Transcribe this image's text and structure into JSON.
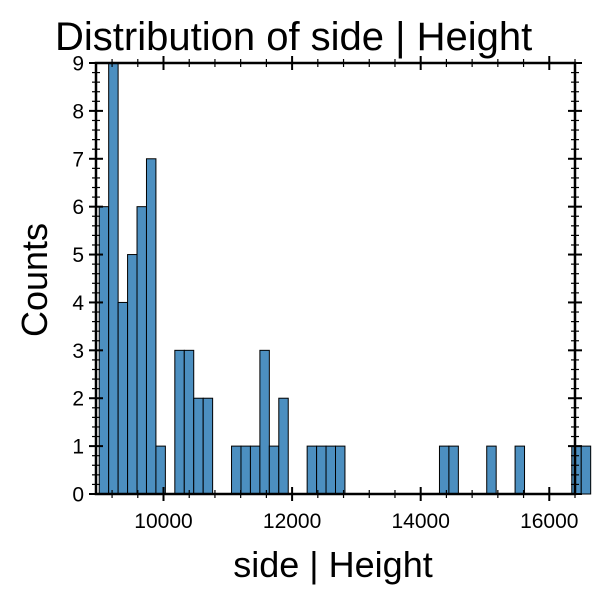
{
  "chart_data": {
    "type": "bar",
    "title": "Distribution of side | Height",
    "xlabel": "side | Height",
    "ylabel": "Counts",
    "xlim": [
      8950,
      16400
    ],
    "ylim": [
      0,
      9
    ],
    "xticks": [
      10000,
      12000,
      14000,
      16000
    ],
    "yticks": [
      0,
      1,
      2,
      3,
      4,
      5,
      6,
      7,
      8,
      9
    ],
    "grid": false,
    "bar_color": "#4c8fc0",
    "bins": {
      "start": 9000,
      "width": 147,
      "counts": [
        6,
        9,
        4,
        5,
        6,
        7,
        1,
        0,
        3,
        3,
        2,
        2,
        0,
        0,
        1,
        1,
        1,
        3,
        1,
        2,
        0,
        0,
        1,
        1,
        1,
        1,
        0,
        0,
        0,
        0,
        0,
        0,
        0,
        0,
        0,
        0,
        1,
        1,
        0,
        0,
        0,
        1,
        0,
        0,
        1,
        0,
        0,
        0,
        0,
        0,
        1,
        1
      ]
    }
  }
}
